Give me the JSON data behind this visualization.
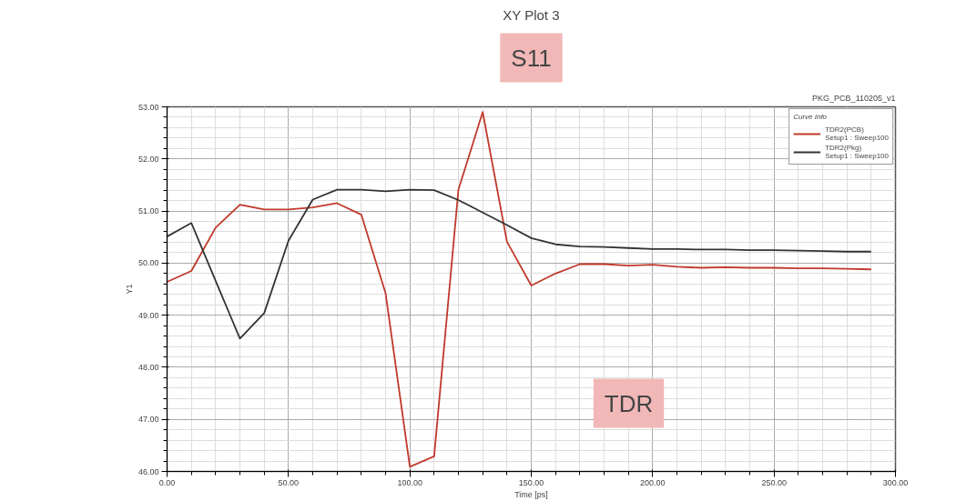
{
  "chart_data": {
    "type": "line",
    "title": "XY Plot 3",
    "xlabel": "Time [ps]",
    "ylabel": "Y1",
    "legend_title": "Curve Info",
    "annotations": [
      "S11",
      "PKG_PCB_110205_v1",
      "TDR"
    ],
    "xlim": [
      0,
      300
    ],
    "xticks": [
      {
        "value": 0,
        "label": "0.00"
      },
      {
        "value": 50,
        "label": "50.00"
      },
      {
        "value": 100,
        "label": "100.00"
      },
      {
        "value": 150,
        "label": "150.00"
      },
      {
        "value": 200,
        "label": "200.00"
      },
      {
        "value": 250,
        "label": "250.00"
      },
      {
        "value": 300,
        "label": "300.00"
      }
    ],
    "ylim": [
      46,
      53
    ],
    "yticks": [
      {
        "value": 46,
        "label": "46.00"
      },
      {
        "value": 47,
        "label": "47.00"
      },
      {
        "value": 48,
        "label": "48.00"
      },
      {
        "value": 49,
        "label": "49.00"
      },
      {
        "value": 50,
        "label": "50.00"
      },
      {
        "value": 51,
        "label": "51.00"
      },
      {
        "value": 52,
        "label": "52.00"
      },
      {
        "value": 53,
        "label": "53.00"
      }
    ],
    "x": [
      0,
      10,
      20,
      30,
      40,
      50,
      60,
      70,
      80,
      90,
      100,
      110,
      120,
      130,
      140,
      150,
      160,
      170,
      180,
      190,
      200,
      210,
      220,
      230,
      240,
      250,
      260,
      270,
      280,
      290
    ],
    "series": [
      {
        "name": "TDR2(PCB)\nSetup1 : Sweep100",
        "color": "#c0392b",
        "values": [
          49.64,
          49.85,
          50.68,
          51.12,
          51.03,
          51.03,
          51.07,
          51.15,
          50.93,
          49.42,
          46.09,
          46.29,
          51.41,
          52.9,
          50.41,
          49.57,
          49.8,
          49.98,
          49.98,
          49.95,
          49.97,
          49.93,
          49.91,
          49.92,
          49.91,
          49.91,
          49.9,
          49.9,
          49.89,
          49.88
        ]
      },
      {
        "name": "TDR2(Pkg)\nSetup1 : Sweep100",
        "color": "#333333",
        "values": [
          50.51,
          50.77,
          49.66,
          48.55,
          49.04,
          50.43,
          51.22,
          51.41,
          51.41,
          51.38,
          51.41,
          51.4,
          51.21,
          50.97,
          50.73,
          50.48,
          50.36,
          50.32,
          50.31,
          50.29,
          50.27,
          50.27,
          50.26,
          50.26,
          50.25,
          50.25,
          50.24,
          50.23,
          50.22,
          50.22
        ]
      }
    ],
    "grid": true,
    "legend": "top right",
    "marker": "none",
    "line_style": "solid"
  }
}
